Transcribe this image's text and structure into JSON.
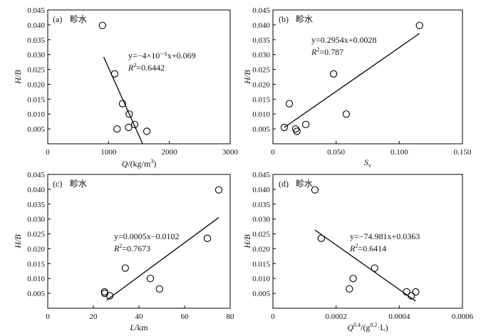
{
  "chart_data": [
    {
      "type": "scatter",
      "panel": "(a)",
      "station": "畛水",
      "xlabel_main": "Q",
      "xlabel_unit": "/(kg/m",
      "xlabel_sup": "3",
      "xlabel_close": ")",
      "ylabel": "H/B",
      "xlim": [
        0,
        3000
      ],
      "ylim": [
        0,
        0.045
      ],
      "x_ticks": [
        "0",
        "1000",
        "2000",
        "3000"
      ],
      "y_ticks": [
        "0.005",
        "0.010",
        "0.015",
        "0.020",
        "0.025",
        "0.030",
        "0.035",
        "0.040",
        "0.045"
      ],
      "points": [
        {
          "x": 900,
          "y": 0.0398
        },
        {
          "x": 1100,
          "y": 0.0235
        },
        {
          "x": 1230,
          "y": 0.0135
        },
        {
          "x": 1340,
          "y": 0.01
        },
        {
          "x": 1140,
          "y": 0.005
        },
        {
          "x": 1330,
          "y": 0.0055
        },
        {
          "x": 1430,
          "y": 0.0065
        },
        {
          "x": 1630,
          "y": 0.0042
        }
      ],
      "fit_line": {
        "x": [
          920,
          1560
        ],
        "y": [
          0.0292,
          0.0
        ]
      },
      "equation": "y=−4×10⁻⁵x+0.069",
      "r2_label": "R",
      "r2_value": "=0.6442"
    },
    {
      "type": "scatter",
      "panel": "(b)",
      "station": "畛水",
      "xlabel_main": "S",
      "xlabel_sub": "v",
      "ylabel": "H/B",
      "xlim": [
        0,
        0.15
      ],
      "ylim": [
        0,
        0.045
      ],
      "x_ticks": [
        "0",
        "0.050",
        "0.100",
        "0.150"
      ],
      "y_ticks": [
        "0.005",
        "0.010",
        "0.015",
        "0.020",
        "0.025",
        "0.030",
        "0.035",
        "0.040",
        "0.045"
      ],
      "points": [
        {
          "x": 0.009,
          "y": 0.0055
        },
        {
          "x": 0.013,
          "y": 0.0135
        },
        {
          "x": 0.018,
          "y": 0.005
        },
        {
          "x": 0.019,
          "y": 0.0042
        },
        {
          "x": 0.026,
          "y": 0.0065
        },
        {
          "x": 0.048,
          "y": 0.0235
        },
        {
          "x": 0.058,
          "y": 0.01
        },
        {
          "x": 0.116,
          "y": 0.0398
        }
      ],
      "fit_line": {
        "x": [
          0.009,
          0.116
        ],
        "y": [
          0.0055,
          0.0371
        ]
      },
      "equation": "y=0.2954x+0.0028",
      "r2_label": "R",
      "r2_value": "=0.787"
    },
    {
      "type": "scatter",
      "panel": "(c)",
      "station": "畛水",
      "xlabel_main": "L",
      "xlabel_unit": "/km",
      "ylabel": "H/B",
      "xlim": [
        0,
        80
      ],
      "ylim": [
        0,
        0.045
      ],
      "x_ticks": [
        "0",
        "20",
        "40",
        "60",
        "80"
      ],
      "y_ticks": [
        "0.005",
        "0.010",
        "0.015",
        "0.020",
        "0.025",
        "0.030",
        "0.035",
        "0.040",
        "0.045"
      ],
      "points": [
        {
          "x": 24.9,
          "y": 0.0055
        },
        {
          "x": 25.0,
          "y": 0.005
        },
        {
          "x": 27.2,
          "y": 0.0042
        },
        {
          "x": 34.0,
          "y": 0.0135
        },
        {
          "x": 45.0,
          "y": 0.01
        },
        {
          "x": 49.0,
          "y": 0.0065
        },
        {
          "x": 70.0,
          "y": 0.0235
        },
        {
          "x": 75.0,
          "y": 0.0398
        }
      ],
      "fit_line": {
        "x": [
          25.8,
          75.0
        ],
        "y": [
          0.0027,
          0.0305
        ]
      },
      "equation": "y=0.0005x−0.0102",
      "r2_label": "R",
      "r2_value": "=0.7673"
    },
    {
      "type": "scatter",
      "panel": "(d)",
      "station": "畛水",
      "xlabel_main": "Q",
      "xlabel_sup1": "0.4",
      "xlabel_mid": "/(g",
      "xlabel_sup2": "0.2",
      "xlabel_close": "·L)",
      "ylabel": "H/B",
      "xlim": [
        0,
        0.0006
      ],
      "ylim": [
        0,
        0.045
      ],
      "x_ticks": [
        "0",
        "0.0002",
        "0.0004",
        "0.0006"
      ],
      "y_ticks": [
        "0.005",
        "0.010",
        "0.015",
        "0.020",
        "0.025",
        "0.030",
        "0.035",
        "0.040",
        "0.045"
      ],
      "points": [
        {
          "x": 0.000133,
          "y": 0.0398
        },
        {
          "x": 0.000153,
          "y": 0.0235
        },
        {
          "x": 0.000322,
          "y": 0.0135
        },
        {
          "x": 0.000254,
          "y": 0.01
        },
        {
          "x": 0.000242,
          "y": 0.0065
        },
        {
          "x": 0.000423,
          "y": 0.0055
        },
        {
          "x": 0.000438,
          "y": 0.0042
        },
        {
          "x": 0.000452,
          "y": 0.0055
        }
      ],
      "fit_line": {
        "x": [
          0.000133,
          0.000452
        ],
        "y": [
          0.0263,
          0.0024
        ]
      },
      "equation": "y=−74.981x+0.0363",
      "r2_label": "R",
      "r2_value": "=0.6414"
    }
  ]
}
